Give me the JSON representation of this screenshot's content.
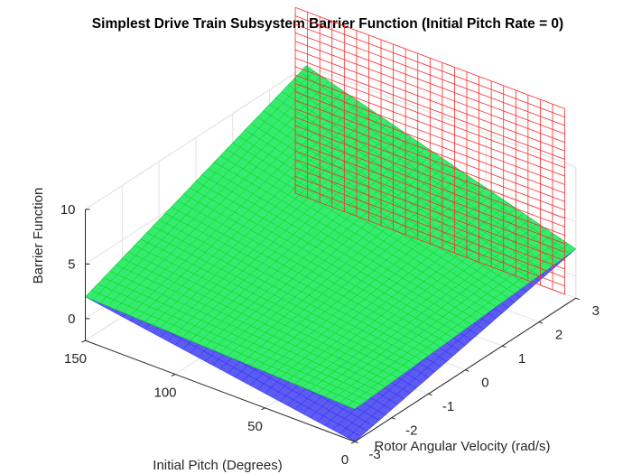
{
  "chart_data": {
    "type": "surface",
    "title": "Simplest Drive Train Subsystem Barrier Function (Initial Pitch Rate = 0)",
    "xlabel": "Rotor Angular Velocity (rad/s)",
    "ylabel": "Initial Pitch (Degrees)",
    "zlabel": "Barrier Function",
    "xlim": [
      -3,
      3
    ],
    "ylim": [
      0,
      150
    ],
    "zlim": [
      -2,
      10
    ],
    "x_ticks": [
      "-3",
      "-2",
      "-1",
      "0",
      "1",
      "2",
      "3"
    ],
    "y_ticks": [
      "0",
      "50",
      "100",
      "150"
    ],
    "z_ticks": [
      "0",
      "5",
      "10"
    ],
    "grid": true,
    "series": [
      {
        "color": "#0000ff",
        "style": "mesh",
        "corners": {
          "x_-3_y_0": -2,
          "x_3_y_0": 2.5,
          "x_-3_y_150": 2,
          "x_3_y_150": 10
        }
      },
      {
        "color": "#00ff00",
        "style": "surface",
        "corners": {
          "x_-3_y_0": 1,
          "x_3_y_0": 2.5,
          "x_-3_y_150": 2,
          "x_3_y_150": 10
        }
      },
      {
        "color": "#ff0000",
        "style": "mesh",
        "plane_x": 2.7,
        "z_range": [
          -1,
          16
        ]
      }
    ]
  }
}
